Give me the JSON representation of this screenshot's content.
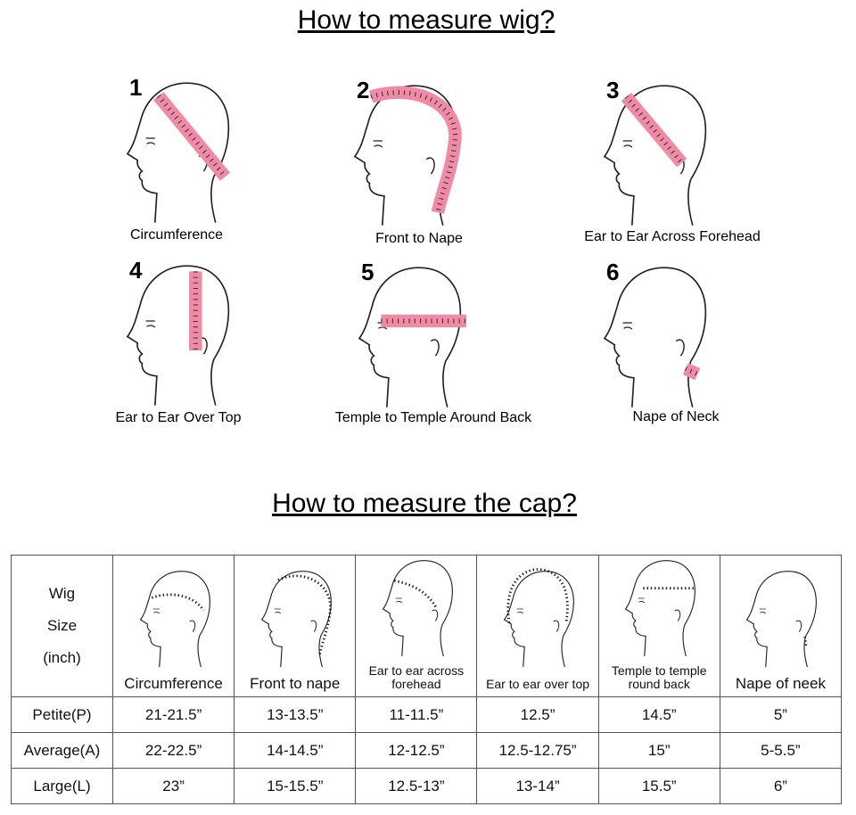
{
  "title": "How to measure wig?",
  "diagrams": [
    {
      "number": "1",
      "label": "Circumference"
    },
    {
      "number": "2",
      "label": "Front to Nape"
    },
    {
      "number": "3",
      "label": "Ear to Ear Across Forehead"
    },
    {
      "number": "4",
      "label": "Ear to Ear Over Top"
    },
    {
      "number": "5",
      "label": "Temple to Temple Around Back"
    },
    {
      "number": "6",
      "label": "Nape of Neck"
    }
  ],
  "cap_title": "How to measure the cap?",
  "table": {
    "header": "Wig Size (inch)",
    "columns": [
      "Circumference",
      "Front to nape",
      "Ear to ear across forehead",
      "Ear to ear over top",
      "Temple to temple round back",
      "Nape of neek"
    ],
    "rows": [
      [
        "Petite(P)",
        "21-21.5”",
        "13-13.5”",
        "11-11.5”",
        "12.5”",
        "14.5”",
        "5”"
      ],
      [
        "Average(A)",
        "22-22.5”",
        "14-14.5”",
        "12-12.5”",
        "12.5-12.75”",
        "15”",
        "5-5.5”"
      ],
      [
        "Large(L)",
        "23”",
        "15-15.5”",
        "12.5-13”",
        "13-14”",
        "15.5”",
        "6”"
      ]
    ]
  }
}
